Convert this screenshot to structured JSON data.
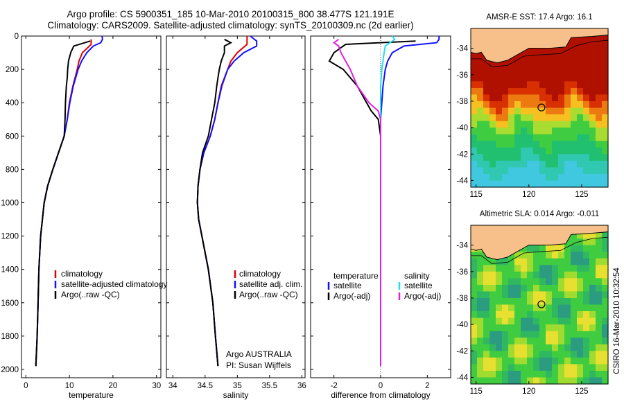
{
  "header": {
    "title_line1": "Argo profile: CS 5900351_185 10-Mar-2010 20100315_800 38.477S 121.191E",
    "title_line2": "Climatology: CARS2009. Satellite-adjusted climatology: synTS_20100309.nc (2d earlier)"
  },
  "colors": {
    "climatology": "#e00000",
    "satellite": "#1010ff",
    "argo": "#000000",
    "salinity_satellite": "#20e0f0",
    "salinity_argo": "#e020e0",
    "land": "#f7c08a"
  },
  "depth_axis": {
    "ticks": [
      "0",
      "200",
      "400",
      "600",
      "800",
      "1000",
      "1200",
      "1400",
      "1600",
      "1800",
      "2000"
    ],
    "range": [
      0,
      2050
    ]
  },
  "chart_data": [
    {
      "type": "line",
      "name": "temperature",
      "xlabel": "temperature",
      "ylabel": "",
      "xlim": [
        -1,
        31
      ],
      "xticks": [
        "0",
        "10",
        "20",
        "30"
      ],
      "ylim": [
        2050,
        0
      ],
      "legend": [
        "climatology",
        "satellite-adjusted climatology",
        "Argo(..raw -QC)"
      ],
      "legend_placement": "bottom-center",
      "series": [
        {
          "key": "climatology",
          "depth": [
            20,
            50,
            100,
            150,
            200,
            300,
            400,
            500,
            600,
            700,
            800,
            900,
            1000,
            1200,
            1400,
            1600,
            1800,
            1980
          ],
          "values": [
            15.0,
            15.0,
            13.0,
            12.2,
            11.8,
            10.8,
            10.0,
            9.5,
            8.8,
            7.5,
            6.2,
            5.0,
            4.2,
            3.4,
            3.0,
            2.8,
            2.6,
            2.3
          ]
        },
        {
          "key": "satellite",
          "depth": [
            0,
            20,
            40,
            60,
            100,
            150,
            200,
            300,
            400,
            500,
            600,
            700,
            800,
            900,
            1000,
            1200,
            1400,
            1600,
            1800,
            1980
          ],
          "values": [
            17.5,
            17.6,
            17.2,
            15.5,
            14.0,
            12.8,
            12.0,
            10.9,
            10.1,
            9.5,
            8.8,
            7.5,
            6.2,
            5.0,
            4.2,
            3.4,
            3.0,
            2.8,
            2.6,
            2.3
          ]
        },
        {
          "key": "argo",
          "depth": [
            30,
            60,
            100,
            150,
            200,
            250,
            300,
            400,
            500,
            600,
            700,
            800,
            900,
            1000,
            1200,
            1400,
            1600,
            1800,
            1980
          ],
          "values": [
            14.8,
            11.0,
            10.3,
            9.8,
            9.6,
            9.5,
            9.3,
            9.1,
            9.0,
            8.8,
            7.5,
            6.2,
            5.0,
            4.2,
            3.4,
            3.0,
            2.8,
            2.6,
            2.3
          ]
        }
      ]
    },
    {
      "type": "line",
      "name": "salinity",
      "xlabel": "salinity",
      "ylabel": "",
      "xlim": [
        33.9,
        36.05
      ],
      "xticks": [
        "34",
        "34.5",
        "35",
        "35.5",
        "36"
      ],
      "ylim": [
        2050,
        0
      ],
      "legend": [
        "climatology",
        "satellite adj. clim.",
        "Argo(..raw -QC)"
      ],
      "legend_placement": "bottom-right",
      "credit_line1": "Argo AUSTRALIA",
      "credit_line2": "PI: Susan Wijffels",
      "series": [
        {
          "key": "climatology",
          "depth": [
            0,
            20,
            50,
            100,
            150,
            200,
            300,
            400,
            500,
            600,
            700,
            800,
            900,
            1000,
            1100,
            1200,
            1400,
            1600,
            1800,
            1980
          ],
          "values": [
            35.15,
            35.15,
            35.15,
            35.0,
            34.9,
            34.85,
            34.75,
            34.7,
            34.65,
            34.58,
            34.48,
            34.42,
            34.39,
            34.38,
            34.4,
            34.45,
            34.55,
            34.62,
            34.66,
            34.7
          ]
        },
        {
          "key": "satellite",
          "depth": [
            0,
            30,
            60,
            100,
            150,
            200,
            300,
            400,
            500,
            600,
            700,
            800,
            900,
            1000,
            1100,
            1200,
            1400,
            1600,
            1800,
            1980
          ],
          "values": [
            35.2,
            35.3,
            35.3,
            35.1,
            34.95,
            34.85,
            34.76,
            34.7,
            34.65,
            34.58,
            34.48,
            34.42,
            34.39,
            34.38,
            34.4,
            34.45,
            34.55,
            34.62,
            34.66,
            34.7
          ]
        },
        {
          "key": "argo",
          "depth": [
            20,
            40,
            60,
            100,
            150,
            200,
            250,
            300,
            400,
            500,
            600,
            700,
            800,
            900,
            1000,
            1100,
            1200,
            1400,
            1600,
            1800,
            1980
          ],
          "values": [
            34.8,
            34.9,
            34.8,
            34.8,
            34.75,
            34.72,
            34.7,
            34.68,
            34.65,
            34.6,
            34.55,
            34.46,
            34.42,
            34.39,
            34.38,
            34.4,
            34.45,
            34.55,
            34.62,
            34.66,
            34.7
          ]
        }
      ]
    },
    {
      "type": "line",
      "name": "difference",
      "xlabel": "difference from climatology",
      "ylabel": "",
      "xlim": [
        -3.0,
        3.0
      ],
      "xticks": [
        "-2",
        "0",
        "2"
      ],
      "ylim": [
        2050,
        0
      ],
      "legend_columns": [
        {
          "heading": "temperature",
          "items": [
            "satellite",
            "Argo(-adj)"
          ]
        },
        {
          "heading": "salinity",
          "items": [
            "satellite",
            "Argo(-adj)"
          ]
        }
      ],
      "legend_placement": "bottom-center",
      "series": [
        {
          "key": "temp_satellite",
          "depth": [
            0,
            20,
            40,
            60,
            100,
            150,
            200,
            300,
            400,
            500,
            600,
            800,
            1000,
            1500,
            1980
          ],
          "values": [
            2.5,
            2.5,
            2.4,
            1.0,
            0.5,
            0.3,
            0.2,
            0.1,
            0.05,
            0.0,
            0.0,
            0.0,
            0.0,
            0.0,
            0.0
          ]
        },
        {
          "key": "temp_argo",
          "depth": [
            30,
            50,
            80,
            100,
            150,
            200,
            250,
            300,
            350,
            400,
            450,
            500,
            600,
            700,
            800,
            1000,
            1500,
            1980
          ],
          "values": [
            1.5,
            -1.5,
            -1.8,
            -2.0,
            -2.2,
            -1.6,
            -1.3,
            -1.0,
            -0.8,
            -0.6,
            -0.4,
            -0.1,
            0.0,
            0.0,
            0.0,
            0.0,
            0.0,
            0.0
          ]
        },
        {
          "key": "sal_satellite",
          "depth": [
            0,
            20,
            40,
            60,
            100,
            150,
            200,
            300,
            400,
            500,
            600,
            800,
            1000,
            1500,
            1980
          ],
          "values": [
            0.5,
            0.6,
            0.4,
            0.2,
            0.15,
            0.1,
            0.05,
            0.0,
            0.0,
            0.0,
            0.0,
            0.0,
            0.0,
            0.0,
            0.0
          ]
        },
        {
          "key": "sal_argo",
          "depth": [
            20,
            40,
            60,
            100,
            150,
            200,
            300,
            400,
            450,
            500,
            600,
            800,
            1000,
            1500,
            1980
          ],
          "values": [
            -1.8,
            -2.0,
            -1.8,
            -1.7,
            -1.5,
            -1.3,
            -1.0,
            -0.5,
            -0.1,
            0.0,
            0.0,
            0.0,
            0.0,
            0.0,
            0.0
          ]
        }
      ]
    },
    {
      "type": "heatmap",
      "name": "sst-map",
      "title": "AMSR-E SST: 17.4 Argo: 16.1",
      "xticks": [
        "115",
        "120",
        "125"
      ],
      "yticks": [
        "-34",
        "-36",
        "-38",
        "-40",
        "-42",
        "-44"
      ],
      "xlim": [
        114.5,
        127.5
      ],
      "ylim": [
        -44.5,
        -32.5
      ],
      "marker": {
        "lon": 121.191,
        "lat": -38.477
      }
    },
    {
      "type": "heatmap",
      "name": "sla-map",
      "title": "Altimetric SLA: 0.014 Argo: -0.011",
      "xticks": [
        "115",
        "120",
        "125"
      ],
      "yticks": [
        "-34",
        "-36",
        "-38",
        "-40",
        "-42",
        "-44"
      ],
      "xlim": [
        114.5,
        127.5
      ],
      "ylim": [
        -44.5,
        -32.5
      ],
      "marker": {
        "lon": 121.191,
        "lat": -38.477
      }
    }
  ],
  "footer": {
    "stamp": "CSIRO 16-Mar-2010 10:32:54"
  }
}
